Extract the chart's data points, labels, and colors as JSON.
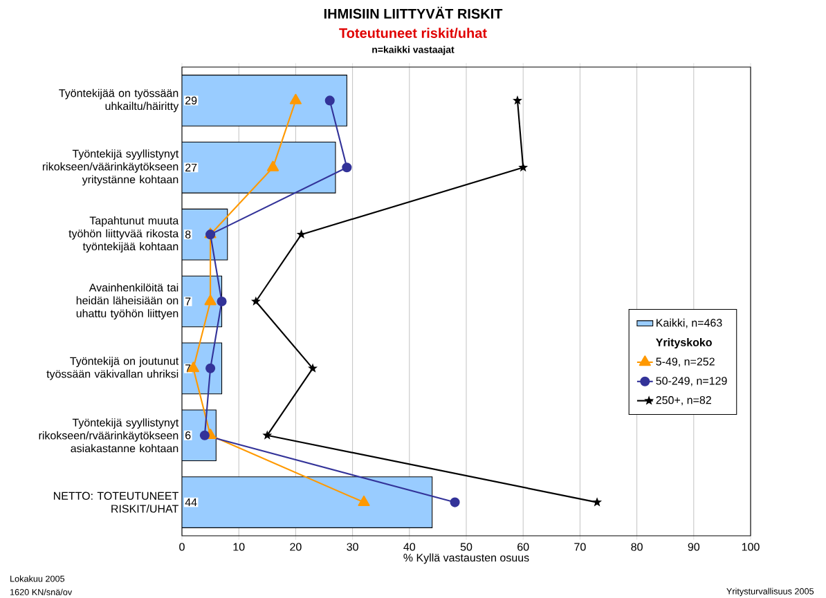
{
  "chart_data": {
    "type": "bar",
    "orientation": "horizontal",
    "title": "IHMISIIN LIITTYVÄT RISKIT",
    "subtitle": "Toteutuneet riskit/uhat",
    "xlabel": "% Kyllä vastausten osuus",
    "legend_title": "Yrityskoko",
    "annotations": [
      "n=kaikki vastaajat",
      "Lokakuu 2005",
      "1620 KN/snä/ov",
      "Yritysturvallisuus 2005"
    ],
    "categories": [
      "Työntekijää on työssään uhkailtu/häiritty",
      "Työntekijä syyllistynyt rikokseen/väärinkäytökseen yritystänne kohtaan",
      "Tapahtunut muuta työhön liittyvää rikosta työntekijää kohtaan",
      "Avainhenkilöitä tai heidän läheisiään on uhattu työhön liittyen",
      "Työntekijä on joutunut työssään väkivallan uhriksi",
      "Työntekijä syyllistynyt rikokseen/rväärinkäytökseen asiakastanne kohtaan",
      "NETTO: TOTEUTUNEET RISKIT/UHAT"
    ],
    "series": [
      {
        "name": "Kaikki, n=463",
        "color": "#99ccff",
        "values": [
          29,
          27,
          8,
          7,
          7,
          6,
          44
        ],
        "value_labels": [
          "29",
          "27",
          "8",
          "7",
          "7",
          "6",
          "44"
        ]
      },
      {
        "name": "5-49, n=252",
        "type": "line",
        "marker": "triangle",
        "color": "#ff9900",
        "values": [
          20,
          16,
          5,
          5,
          2,
          5,
          32
        ]
      },
      {
        "name": "50-249, n=129",
        "type": "line",
        "marker": "circle",
        "color": "#333399",
        "values": [
          26,
          29,
          5,
          7,
          5,
          4,
          48
        ]
      },
      {
        "name": "250+, n=82",
        "type": "line",
        "marker": "star",
        "color": "#000000",
        "values": [
          59,
          60,
          21,
          13,
          23,
          15,
          73
        ]
      }
    ],
    "xlim": [
      0,
      100
    ],
    "xticks": [
      0,
      10,
      20,
      30,
      40,
      50,
      60,
      70,
      80,
      90,
      100
    ],
    "grid": "x",
    "legend": "right"
  }
}
